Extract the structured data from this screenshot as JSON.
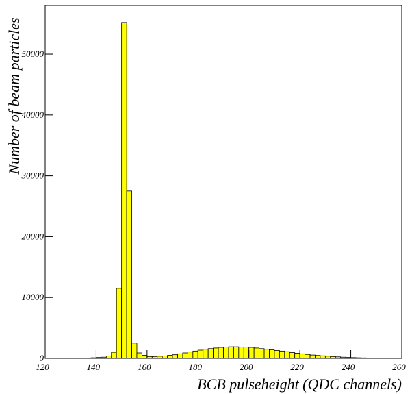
{
  "chart_data": {
    "type": "histogram",
    "x_label": "BCB pulseheight (QDC channels)",
    "y_label": "Number of beam particles",
    "color": "#ffff00",
    "bins": [
      120,
      122,
      124,
      126,
      128,
      130,
      132,
      134,
      136,
      138,
      140,
      142,
      144,
      146,
      148,
      150,
      152,
      154,
      156,
      158,
      160,
      162,
      164,
      166,
      168,
      170,
      172,
      174,
      176,
      178,
      180,
      182,
      184,
      186,
      188,
      190,
      192,
      194,
      196,
      198,
      200,
      202,
      204,
      206,
      208,
      210,
      212,
      214,
      216,
      218,
      220,
      222,
      224,
      226,
      228,
      230,
      232,
      234,
      236,
      238,
      240,
      242,
      244,
      246,
      248,
      250,
      252,
      254,
      256,
      258,
      260
    ],
    "values": [
      0,
      0,
      0,
      0,
      0,
      0,
      0,
      0,
      50,
      100,
      150,
      200,
      400,
      1000,
      11500,
      55200,
      27500,
      2500,
      900,
      500,
      300,
      300,
      350,
      400,
      500,
      600,
      750,
      900,
      1050,
      1200,
      1350,
      1500,
      1600,
      1700,
      1800,
      1850,
      1900,
      1900,
      1850,
      1850,
      1800,
      1700,
      1600,
      1500,
      1400,
      1300,
      1200,
      1100,
      950,
      850,
      750,
      650,
      550,
      480,
      420,
      360,
      300,
      250,
      200,
      160,
      130,
      100,
      80,
      60,
      50,
      40,
      30,
      20,
      15,
      10
    ],
    "xlim": [
      120,
      260
    ],
    "ylim": [
      0,
      58000
    ],
    "xticks": [
      120,
      140,
      160,
      180,
      200,
      220,
      240,
      260
    ],
    "yticks": [
      0,
      10000,
      20000,
      30000,
      40000,
      50000
    ]
  }
}
